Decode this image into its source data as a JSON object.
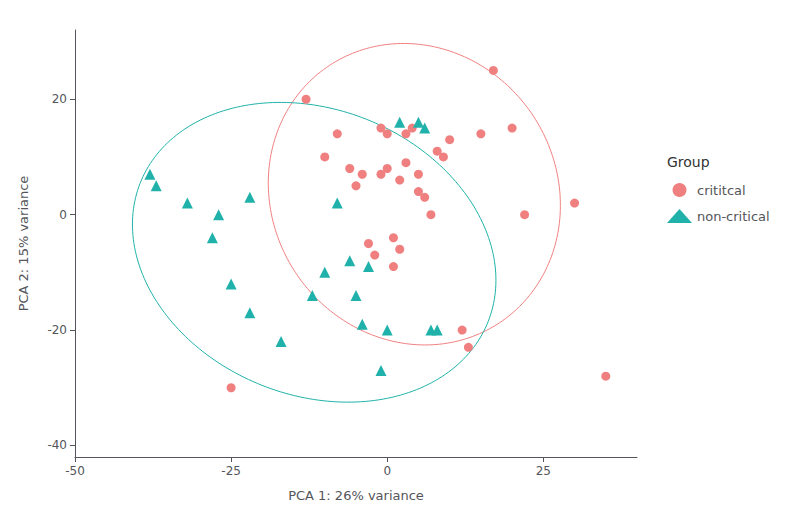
{
  "chart_data": {
    "type": "scatter",
    "xlabel": "PCA 1: 26% variance",
    "ylabel": "PCA 2: 15% variance",
    "legend_title": "Group",
    "legend": "right",
    "grid": false,
    "xlim": [
      -50,
      40
    ],
    "ylim": [
      -42,
      32
    ],
    "xticks": [
      -50,
      -25,
      0,
      25
    ],
    "yticks": [
      -40,
      -20,
      0,
      20
    ],
    "series": [
      {
        "name": "crititcal",
        "color": "#F08080",
        "marker": "circle",
        "ellipse_n_std": 2.0,
        "x": [
          -25,
          -13,
          -10,
          -8,
          -6,
          -5,
          -4,
          -3,
          -2,
          -1,
          -1,
          0,
          0,
          1,
          1,
          2,
          2,
          3,
          3,
          4,
          5,
          5,
          6,
          7,
          8,
          9,
          10,
          12,
          13,
          15,
          17,
          20,
          22,
          30,
          35
        ],
        "values": [
          -30,
          20,
          10,
          14,
          8,
          5,
          7,
          -5,
          -7,
          15,
          7,
          14,
          8,
          -4,
          -9,
          -6,
          6,
          9,
          14,
          15,
          7,
          4,
          3,
          0,
          11,
          10,
          13,
          -20,
          -23,
          14,
          25,
          15,
          0,
          2,
          -28
        ]
      },
      {
        "name": "non-critical",
        "color": "#20B2AA",
        "marker": "triangle",
        "ellipse_n_std": 2.0,
        "x": [
          -38,
          -37,
          -32,
          -28,
          -27,
          -25,
          -22,
          -22,
          -17,
          -12,
          -10,
          -8,
          -5,
          -4,
          -3,
          -1,
          0,
          2,
          5,
          6,
          7,
          8,
          -6
        ],
        "values": [
          7,
          5,
          2,
          -4,
          0,
          -12,
          3,
          -17,
          -22,
          -14,
          -10,
          2,
          -14,
          -19,
          -9,
          -27,
          -20,
          16,
          16,
          15,
          -20,
          -20,
          -8
        ]
      }
    ]
  }
}
